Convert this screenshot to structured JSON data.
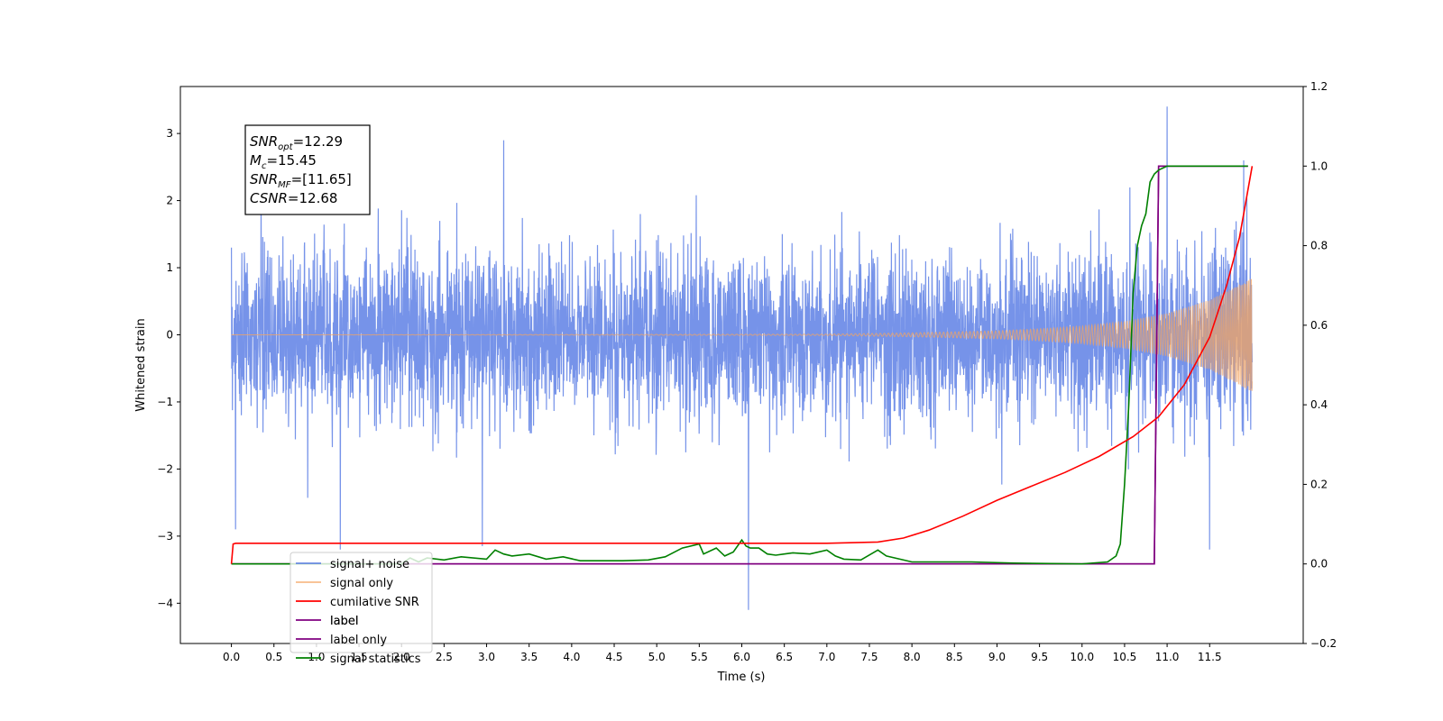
{
  "chart_data": {
    "type": "line",
    "xlabel": "Time (s)",
    "ylabel": "Whitened strain",
    "xlim": [
      -0.6,
      12.6
    ],
    "ylim": [
      -4.6,
      3.7
    ],
    "y2lim": [
      -0.2,
      1.2
    ],
    "xticks": [
      0.0,
      0.5,
      1.0,
      1.5,
      2.0,
      2.5,
      3.0,
      3.5,
      4.0,
      4.5,
      5.0,
      5.5,
      6.0,
      6.5,
      7.0,
      7.5,
      8.0,
      8.5,
      9.0,
      9.5,
      10.0,
      10.5,
      11.0,
      11.5
    ],
    "xtick_labels": [
      "0.0",
      "0.5",
      "1.0",
      "1.5",
      "2.0",
      "2.5",
      "3.0",
      "3.5",
      "4.0",
      "4.5",
      "5.0",
      "5.5",
      "6.0",
      "6.5",
      "7.0",
      "7.5",
      "8.0",
      "8.5",
      "9.0",
      "9.5",
      "10.0",
      "10.5",
      "11.0",
      "11.5"
    ],
    "yticks": [
      -4,
      -3,
      -2,
      -1,
      0,
      1,
      2,
      3
    ],
    "ytick_labels": [
      "−4",
      "−3",
      "−2",
      "−1",
      "0",
      "1",
      "2",
      "3"
    ],
    "y2ticks": [
      -0.2,
      0.0,
      0.2,
      0.4,
      0.6,
      0.8,
      1.0,
      1.2
    ],
    "y2tick_labels": [
      "−0.2",
      "0.0",
      "0.2",
      "0.4",
      "0.6",
      "0.8",
      "1.0",
      "1.2"
    ],
    "grid": false,
    "legend_position": "lower-left",
    "annotation": {
      "lines": [
        {
          "var": "SNR",
          "sub": "opt",
          "value": "=12.29"
        },
        {
          "var": "M",
          "sub": "c",
          "value": "=15.45"
        },
        {
          "var": "SNR",
          "sub": "MF",
          "value": "=[11.65]"
        },
        {
          "var": "CSNR",
          "sub": "",
          "value": "=12.68"
        }
      ]
    },
    "series": [
      {
        "name": "signal+ noise",
        "axis": "left",
        "color": "#4169e1",
        "kind": "noisy-strain",
        "duration": 12.0,
        "std": 0.62,
        "peaks_max": [
          [
            0.0,
            1.3
          ],
          [
            3.2,
            2.9
          ],
          [
            11.0,
            3.4
          ],
          [
            11.9,
            2.6
          ]
        ],
        "peaks_min": [
          [
            0.05,
            -2.9
          ],
          [
            1.28,
            -3.2
          ],
          [
            2.95,
            -3.15
          ],
          [
            6.08,
            -4.1
          ],
          [
            11.5,
            -3.2
          ]
        ]
      },
      {
        "name": "signal only",
        "axis": "left",
        "color": "#f4a460",
        "kind": "chirp",
        "envelope": [
          [
            0.0,
            0.0
          ],
          [
            7.0,
            0.01
          ],
          [
            8.0,
            0.03
          ],
          [
            9.0,
            0.06
          ],
          [
            9.5,
            0.09
          ],
          [
            10.0,
            0.13
          ],
          [
            10.5,
            0.2
          ],
          [
            11.0,
            0.32
          ],
          [
            11.5,
            0.52
          ],
          [
            12.0,
            0.85
          ]
        ]
      },
      {
        "name": "cumilative SNR",
        "axis": "right",
        "color": "#ff0000",
        "x": [
          0.0,
          0.02,
          0.05,
          1.0,
          4.0,
          7.0,
          7.6,
          7.9,
          8.2,
          8.6,
          9.0,
          9.4,
          9.8,
          10.2,
          10.6,
          10.9,
          11.2,
          11.5,
          11.7,
          11.85,
          12.0
        ],
        "y": [
          0.0,
          0.05,
          0.052,
          0.052,
          0.052,
          0.052,
          0.055,
          0.065,
          0.085,
          0.12,
          0.16,
          0.195,
          0.23,
          0.27,
          0.32,
          0.37,
          0.45,
          0.57,
          0.7,
          0.82,
          1.0
        ]
      },
      {
        "name": "label",
        "axis": "right",
        "color": "#800080",
        "x": [
          0.0,
          10.85,
          10.9,
          11.95
        ],
        "y": [
          0.0,
          0.0,
          1.0,
          1.0
        ]
      },
      {
        "name": "label only",
        "axis": "right",
        "color": "#800080",
        "hidden_by_overlap": true,
        "x": [
          0.0,
          10.85,
          10.9,
          11.95
        ],
        "y": [
          0.0,
          0.0,
          1.0,
          1.0
        ]
      },
      {
        "name": "signal statistics",
        "axis": "right",
        "color": "#008000",
        "x": [
          0.0,
          2.0,
          2.1,
          2.2,
          2.3,
          2.5,
          2.7,
          3.0,
          3.1,
          3.2,
          3.3,
          3.5,
          3.7,
          3.9,
          4.1,
          4.3,
          4.6,
          4.9,
          5.1,
          5.3,
          5.5,
          5.55,
          5.7,
          5.8,
          5.9,
          6.0,
          6.05,
          6.1,
          6.2,
          6.3,
          6.4,
          6.5,
          6.6,
          6.8,
          7.0,
          7.1,
          7.2,
          7.4,
          7.6,
          7.7,
          8.0,
          8.3,
          8.7,
          9.2,
          10.0,
          10.3,
          10.4,
          10.45,
          10.5,
          10.55,
          10.6,
          10.65,
          10.7,
          10.75,
          10.8,
          10.85,
          10.9,
          11.0,
          11.1,
          11.3,
          11.95
        ],
        "y": [
          0.0,
          0.0,
          0.015,
          0.005,
          0.015,
          0.01,
          0.018,
          0.012,
          0.035,
          0.025,
          0.02,
          0.025,
          0.012,
          0.018,
          0.008,
          0.008,
          0.008,
          0.01,
          0.018,
          0.04,
          0.05,
          0.025,
          0.04,
          0.02,
          0.03,
          0.06,
          0.045,
          0.04,
          0.04,
          0.025,
          0.022,
          0.025,
          0.028,
          0.025,
          0.035,
          0.02,
          0.012,
          0.01,
          0.035,
          0.02,
          0.005,
          0.005,
          0.005,
          0.002,
          0.0,
          0.005,
          0.02,
          0.05,
          0.2,
          0.4,
          0.68,
          0.8,
          0.85,
          0.88,
          0.96,
          0.98,
          0.99,
          1.0,
          1.0,
          1.0,
          1.0
        ]
      }
    ]
  }
}
